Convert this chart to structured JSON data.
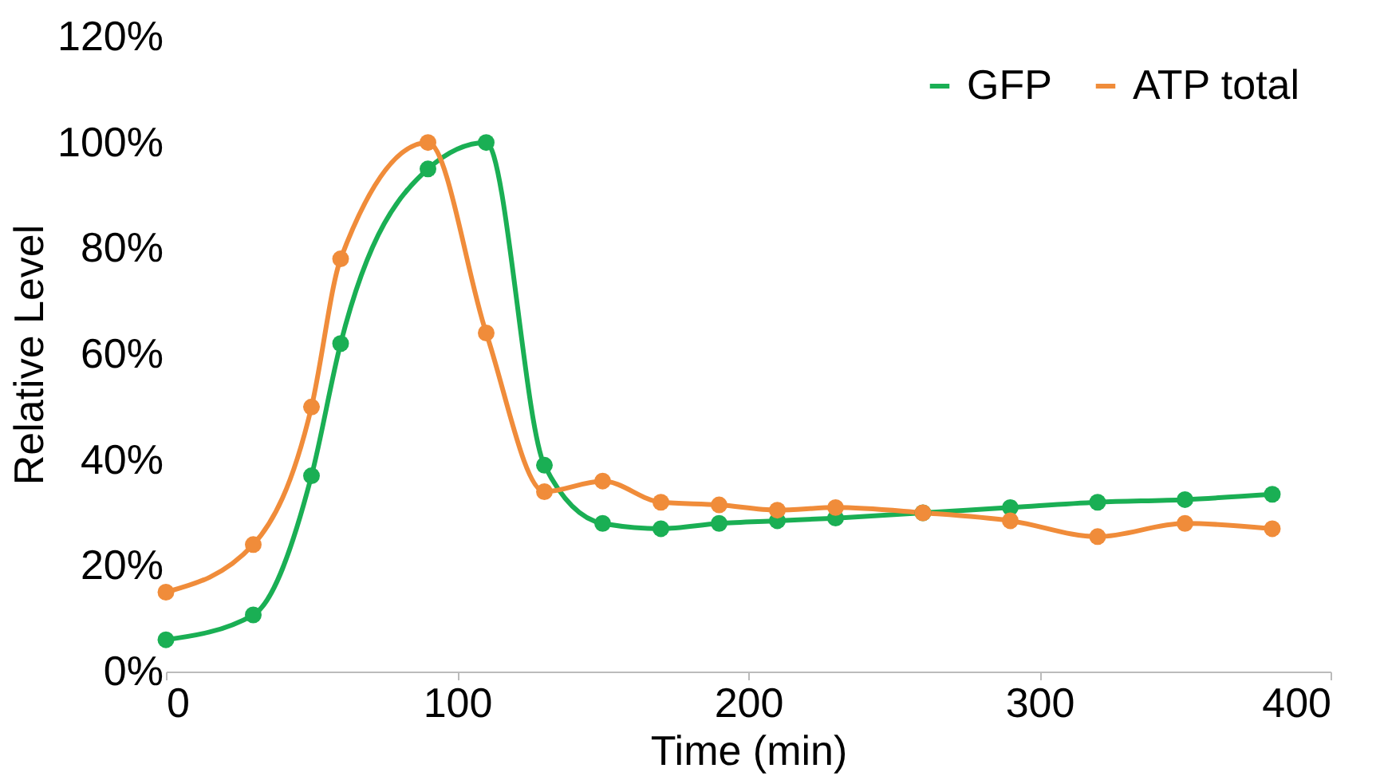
{
  "chart_data": {
    "type": "line",
    "xlabel": "Time (min)",
    "ylabel": "Relative Level",
    "x": [
      0,
      30,
      50,
      60,
      90,
      110,
      130,
      150,
      170,
      190,
      210,
      230,
      260,
      290,
      320,
      350,
      380
    ],
    "series": [
      {
        "name": "GFP",
        "color": "#1aaf54",
        "values": [
          6,
          10.7,
          37,
          62,
          95,
          100,
          39,
          28,
          27,
          28,
          28.5,
          29,
          30,
          31,
          32,
          32.5,
          33.5
        ]
      },
      {
        "name": "ATP total",
        "color": "#f08c3a",
        "values": [
          15,
          24,
          50,
          78,
          100,
          64,
          34,
          36,
          32,
          31.5,
          30.5,
          31,
          30,
          28.5,
          25.5,
          28,
          27
        ]
      }
    ],
    "xlim": [
      0,
      400
    ],
    "xticks": [
      0,
      100,
      200,
      300,
      400
    ],
    "ylim": [
      0,
      120
    ],
    "yticks": [
      {
        "value": 0,
        "label": "0%"
      },
      {
        "value": 20,
        "label": "20%"
      },
      {
        "value": 40,
        "label": "40%"
      },
      {
        "value": 60,
        "label": "60%"
      },
      {
        "value": 80,
        "label": "80%"
      },
      {
        "value": 100,
        "label": "100%"
      },
      {
        "value": 120,
        "label": "120%"
      }
    ],
    "grid": false,
    "legend": "top right",
    "marker": "circle",
    "line_style": "solid"
  }
}
